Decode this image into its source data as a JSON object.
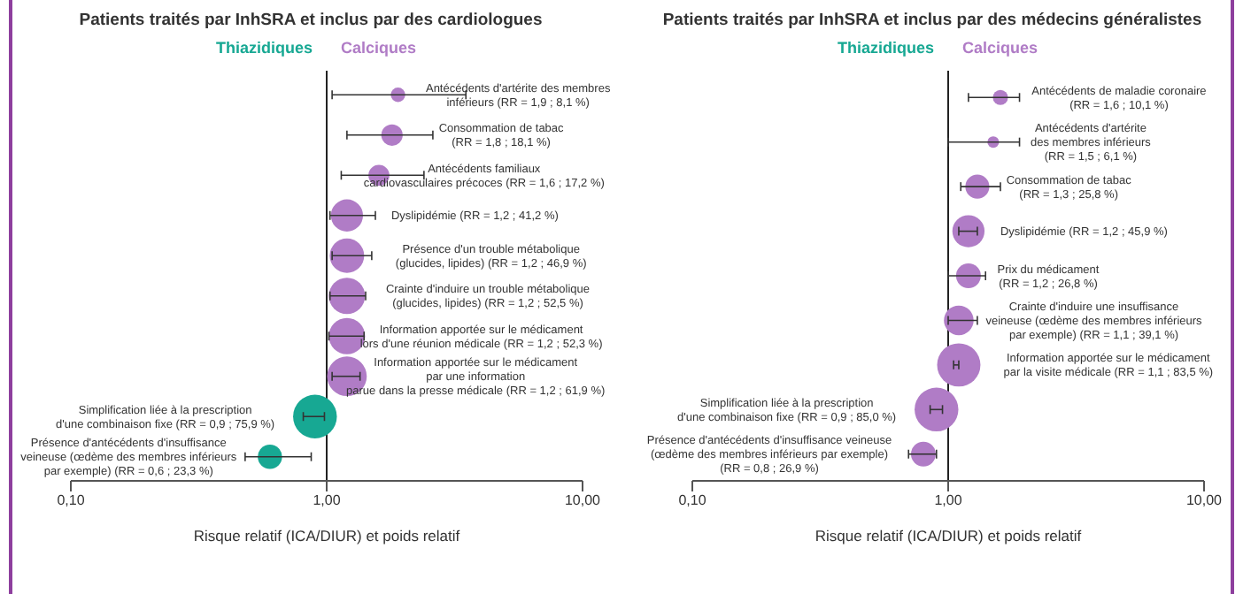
{
  "chart_data": [
    {
      "type": "bubble",
      "title": "Patients traités par InhSRA et inclus par des cardiologues",
      "xlabel": "Risque relatif (ICA/DIUR) et poids relatif",
      "orientation": "horizontal",
      "log": "x",
      "xlim": [
        0.1,
        10
      ],
      "xticks": [
        {
          "value": 0.1,
          "label": "0,10"
        },
        {
          "value": 1,
          "label": "1,00"
        },
        {
          "value": 10,
          "label": "10,00"
        }
      ],
      "ref_lines": [
        {
          "axis": "x",
          "value": 1,
          "color": "#222222"
        }
      ],
      "categories": [
        "Antécédents d'artérite des membres\ninférieurs (RR = 1,9 ; 8,1 %)",
        "Consommation de tabac\n(RR = 1,8 ; 18,1 %)",
        "Antécédents familiaux\ncardiovasculaires précoces (RR = 1,6 ; 17,2 %)",
        "Dyslipidémie (RR = 1,2 ; 41,2 %)",
        "Présence d'un trouble métabolique\n(glucides, lipides) (RR = 1,2 ; 46,9 %)",
        "Crainte d'induire un trouble métabolique\n(glucides, lipides) (RR = 1,2 ; 52,5 %)",
        "Information apportée sur le médicament\nlors d'une réunion médicale (RR = 1,2 ; 52,3 %)",
        "Information apportée sur le médicament\npar une information\nparue dans la presse médicale (RR = 1,2 ; 61,9 %)",
        "Simplification liée à la prescription\nd'une combinaison fixe (RR = 0,9 ; 75,9 %)",
        "Présence d'antécédents d'insuffisance\nveineuse (œdème des membres inférieurs\npar exemple) (RR = 0,6 ; 23,3 %)"
      ],
      "series": [
        {
          "name": "Thiazidiques",
          "color": "#17a893",
          "values": [
            null,
            null,
            null,
            null,
            null,
            null,
            null,
            null,
            0.9,
            0.6
          ],
          "sizes": [
            null,
            null,
            null,
            null,
            null,
            null,
            null,
            null,
            1,
            0.31
          ],
          "errors": [
            null,
            null,
            null,
            null,
            null,
            null,
            null,
            null,
            [
              0.81,
              0.98
            ],
            [
              0.48,
              0.87
            ]
          ]
        },
        {
          "name": "Calciques",
          "color": "#b07cc6",
          "values": [
            1.9,
            1.8,
            1.6,
            1.2,
            1.2,
            1.2,
            1.2,
            1.2,
            null,
            null
          ],
          "sizes": [
            0.11,
            0.24,
            0.23,
            0.54,
            0.62,
            0.69,
            0.69,
            0.82,
            null,
            null
          ],
          "errors": [
            [
              1.05,
              3.5
            ],
            [
              1.2,
              2.6
            ],
            [
              1.14,
              2.4
            ],
            [
              1.03,
              1.55
            ],
            [
              1.05,
              1.5
            ],
            [
              1.03,
              1.42
            ],
            [
              1.02,
              1.4
            ],
            [
              1.05,
              1.35
            ],
            null,
            null
          ]
        }
      ]
    },
    {
      "type": "bubble",
      "title": "Patients traités par  InhSRA et inclus par des médecins généralistes",
      "xlabel": "Risque relatif (ICA/DIUR) et poids relatif",
      "orientation": "horizontal",
      "log": "x",
      "xlim": [
        0.1,
        10
      ],
      "xticks": [
        {
          "value": 0.1,
          "label": "0,10"
        },
        {
          "value": 1,
          "label": "1,00"
        },
        {
          "value": 10,
          "label": "10,00"
        }
      ],
      "ref_lines": [
        {
          "axis": "x",
          "value": 1,
          "color": "#222222"
        }
      ],
      "annotations": [
        "Thiazidiques",
        "Calciques"
      ],
      "categories": [
        "Antécédents de maladie coronaire\n(RR = 1,6 ; 10,1 %)",
        "Antécédents d'artérite\ndes membres inférieurs\n(RR = 1,5 ; 6,1 %)",
        "Consommation de tabac\n(RR = 1,3 ; 25,8 %)",
        "Dyslipidémie (RR = 1,2 ; 45,9 %)",
        "Prix du médicament\n(RR = 1,2 ; 26,8 %)",
        "Crainte d'induire une insuffisance\nveineuse (œdème des membres inférieurs\npar exemple) (RR = 1,1 ; 39,1 %)",
        "Information apportée sur le médicament\npar la visite médicale (RR = 1,1 ; 83,5 %)",
        "Simplification liée à la prescription\nd'une combinaison fixe (RR = 0,9 ; 85,0 %)",
        "Présence d'antécédents d'insuffisance veineuse\n(œdème des membres inférieurs par exemple)\n(RR = 0,8 ; 26,9 %)"
      ],
      "series": [
        {
          "color": "#b07cc6",
          "values": [
            1.6,
            1.5,
            1.3,
            1.2,
            1.2,
            1.1,
            1.1,
            0.9,
            0.8
          ],
          "sizes": [
            0.12,
            0.07,
            0.3,
            0.54,
            0.32,
            0.46,
            0.98,
            1,
            0.32
          ],
          "errors": [
            [
              1.2,
              1.9
            ],
            [
              1.0,
              1.9
            ],
            [
              1.12,
              1.6
            ],
            [
              1.1,
              1.3
            ],
            [
              1.0,
              1.4
            ],
            [
              1.0,
              1.3
            ],
            [
              1.05,
              1.1
            ],
            [
              0.85,
              0.95
            ],
            [
              0.7,
              0.9
            ]
          ]
        }
      ]
    }
  ]
}
